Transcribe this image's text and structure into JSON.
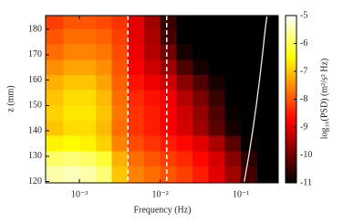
{
  "chart_data": {
    "type": "heatmap",
    "colormap": "hot",
    "xlabel": "Frequency (Hz)",
    "ylabel": "z (mm)",
    "colorbar_label": "log₁₀(PSD) (m²/s² Hz)",
    "xscale": "log",
    "xlim": [
      0.00038,
      0.29
    ],
    "xticks": [
      {
        "value": 0.001,
        "label": "10⁻³"
      },
      {
        "value": 0.01,
        "label": "10⁻²"
      },
      {
        "value": 0.1,
        "label": "10⁻¹"
      }
    ],
    "ylim": [
      119.5,
      185.4
    ],
    "yticks": [
      120,
      130,
      140,
      150,
      160,
      170,
      180
    ],
    "clim": [
      -11,
      -5
    ],
    "cticks": [
      -5,
      -6,
      -7,
      -8,
      -9,
      -10,
      -11
    ],
    "x": [
      0.0005,
      0.0008,
      0.00126,
      0.002,
      0.00316,
      0.005,
      0.0079,
      0.0126,
      0.02,
      0.0316,
      0.05,
      0.079,
      0.126,
      0.2
    ],
    "y": [
      183,
      177,
      171,
      165,
      159,
      153,
      147,
      141,
      135,
      129,
      123
    ],
    "z": [
      [
        -8.2,
        -8.0,
        -8.0,
        -8.1,
        -8.3,
        -9.0,
        -9.6,
        -10.5,
        -11,
        -11,
        -11,
        -11,
        -11,
        -11
      ],
      [
        -8.0,
        -7.8,
        -7.8,
        -7.9,
        -8.2,
        -9.0,
        -9.5,
        -10.4,
        -11,
        -11,
        -11,
        -11,
        -11,
        -11
      ],
      [
        -7.8,
        -7.6,
        -7.6,
        -7.7,
        -8.1,
        -8.9,
        -9.4,
        -10.0,
        -10.8,
        -11,
        -11,
        -11,
        -11,
        -11
      ],
      [
        -7.5,
        -7.3,
        -7.3,
        -7.5,
        -8.0,
        -8.8,
        -9.2,
        -9.6,
        -10.3,
        -10.8,
        -11,
        -11,
        -11,
        -11
      ],
      [
        -7.2,
        -7.0,
        -7.0,
        -7.3,
        -7.9,
        -8.6,
        -8.9,
        -9.2,
        -9.8,
        -10.3,
        -10.8,
        -11,
        -11,
        -11
      ],
      [
        -7.0,
        -6.8,
        -6.8,
        -7.1,
        -7.8,
        -8.4,
        -8.6,
        -8.9,
        -9.4,
        -9.9,
        -10.5,
        -11,
        -11,
        -11
      ],
      [
        -6.9,
        -6.7,
        -6.7,
        -7.0,
        -7.7,
        -8.3,
        -8.5,
        -8.8,
        -9.2,
        -9.7,
        -10.3,
        -10.9,
        -11,
        -11
      ],
      [
        -7.0,
        -6.8,
        -6.8,
        -7.1,
        -7.8,
        -8.3,
        -8.5,
        -8.8,
        -9.1,
        -9.6,
        -10.2,
        -10.8,
        -11,
        -11
      ],
      [
        -6.6,
        -6.5,
        -6.6,
        -6.9,
        -7.6,
        -8.1,
        -8.3,
        -8.5,
        -8.7,
        -9.0,
        -9.5,
        -10.2,
        -10.9,
        -11
      ],
      [
        -5.9,
        -5.8,
        -5.9,
        -6.2,
        -7.2,
        -7.8,
        -8.0,
        -8.2,
        -8.4,
        -8.7,
        -9.1,
        -9.8,
        -10.6,
        -11
      ],
      [
        -5.5,
        -5.4,
        -5.5,
        -5.8,
        -7.0,
        -7.6,
        -7.8,
        -8.0,
        -8.2,
        -8.5,
        -9.0,
        -9.6,
        -10.4,
        -11
      ]
    ],
    "vlines": {
      "x": [
        0.004,
        0.012
      ],
      "color": "#ffffff"
    },
    "curve": {
      "x": [
        0.11,
        0.125,
        0.14,
        0.155,
        0.17,
        0.185,
        0.2,
        0.21
      ],
      "y": [
        120,
        130,
        140,
        150,
        160,
        170,
        180,
        185
      ],
      "color": "#e8e8e8"
    }
  }
}
